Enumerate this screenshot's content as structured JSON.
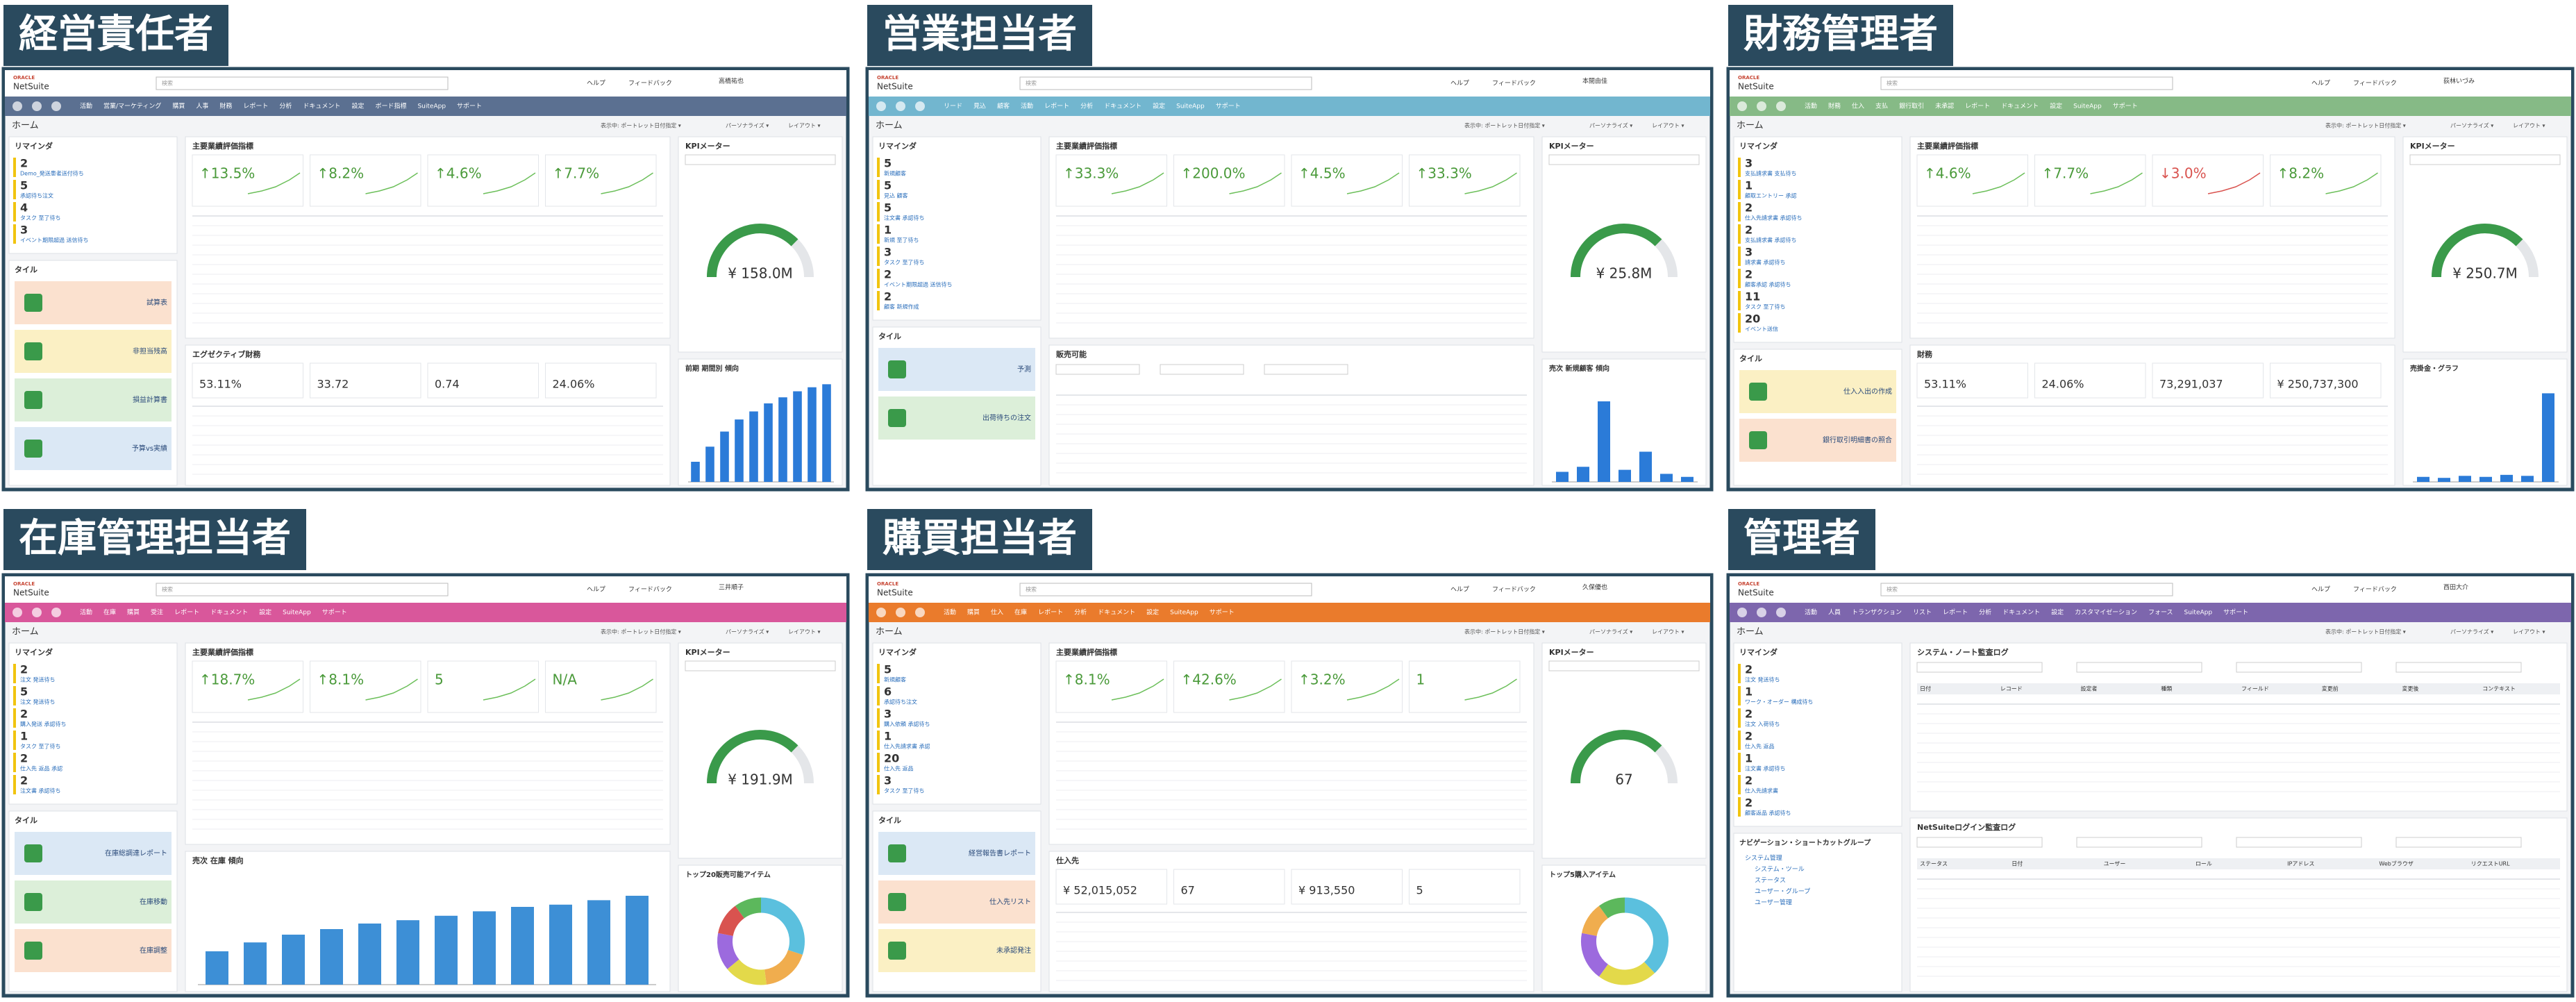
{
  "common": {
    "logo_top": "ORACLE",
    "logo": "NetSuite",
    "search": "検索",
    "help": "ヘルプ",
    "feedback": "フィードバック",
    "home": "ホーム",
    "view": "表示中: ポートレット日付指定 ▾",
    "personalize": "パーソナライズ ▾",
    "layout": "レイアウト ▾",
    "reminders": "リマインダ",
    "tiles": "タイル",
    "kpi": "主要業績評価指標",
    "kpi_meter": "KPIメーター"
  },
  "panels": [
    {
      "role": "経営責任者",
      "user": "高橋祐也",
      "nav_color": "#5b7091",
      "nav": [
        "活動",
        "営業/マーケティング",
        "購買",
        "人事",
        "財務",
        "レポート",
        "分析",
        "ドキュメント",
        "設定",
        "ボード指標",
        "SuiteApp",
        "サポート"
      ],
      "reminders": [
        {
          "count": 2,
          "label": "Demo_発送患者送付待ち"
        },
        {
          "count": 5,
          "label": "承認待ち注文"
        },
        {
          "count": 4,
          "label": "タスク 至了待ち"
        },
        {
          "count": 3,
          "label": "イベント期限超過 送信待ち"
        }
      ],
      "tiles": [
        {
          "label": "試算表",
          "color": "#fbe1cf"
        },
        {
          "label": "非担当残高",
          "color": "#fbf0c4"
        },
        {
          "label": "損益計算書",
          "color": "#dcefd9"
        },
        {
          "label": "予算vs実績",
          "color": "#dbe8f5"
        }
      ],
      "kpis": [
        "↑13.5%",
        "↑8.2%",
        "↑4.6%",
        "↑7.7%"
      ],
      "gauge": "¥ 158.0M",
      "section2": {
        "title": "エグゼクティブ財務",
        "kind": "values",
        "values": [
          "53.11%",
          "33.72",
          "0.74",
          "24.06%"
        ]
      },
      "widget2": {
        "title": "前期 期間別 傾向",
        "kind": "bars",
        "ylim": [
          0,
          100
        ],
        "values": [
          20,
          35,
          50,
          62,
          70,
          78,
          84,
          90,
          94,
          97
        ]
      }
    },
    {
      "role": "営業担当者",
      "user": "本間由佳",
      "nav_color": "#72b6cf",
      "nav": [
        "リード",
        "見込",
        "顧客",
        "活動",
        "レポート",
        "分析",
        "ドキュメント",
        "設定",
        "SuiteApp",
        "サポート"
      ],
      "reminders": [
        {
          "count": 5,
          "label": "新規顧客"
        },
        {
          "count": 5,
          "label": "見込 顧客"
        },
        {
          "count": 5,
          "label": "注文書 承認待ち"
        },
        {
          "count": 1,
          "label": "新規 至了待ち"
        },
        {
          "count": 3,
          "label": "タスク 至了待ち"
        },
        {
          "count": 2,
          "label": "イベント期限超過 送信待ち"
        },
        {
          "count": 2,
          "label": "顧客 新規作成"
        }
      ],
      "tiles": [
        {
          "label": "予測",
          "color": "#dbe8f5"
        },
        {
          "label": "出荷待ちの注文",
          "color": "#dcefd9"
        }
      ],
      "kpis": [
        "↑33.3%",
        "↑200.0%",
        "↑4.5%",
        "↑33.3%"
      ],
      "gauge": "¥ 25.8M",
      "section2": {
        "title": "販売可能",
        "kind": "table"
      },
      "widget2": {
        "title": "売次 新規顧客 傾向",
        "kind": "bars",
        "ylim": [
          0,
          100
        ],
        "values": [
          10,
          15,
          80,
          12,
          30,
          8,
          5
        ]
      }
    },
    {
      "role": "財務管理者",
      "user": "荻林いづみ",
      "nav_color": "#86ba86",
      "nav": [
        "活動",
        "財務",
        "仕入",
        "支払",
        "銀行取引",
        "未承認",
        "レポート",
        "ドキュメント",
        "設定",
        "SuiteApp",
        "サポート"
      ],
      "reminders": [
        {
          "count": 3,
          "label": "支払請求書 支払待ち"
        },
        {
          "count": 1,
          "label": "顧取エントリー 承認"
        },
        {
          "count": 2,
          "label": "仕入先請求書 承認待ち"
        },
        {
          "count": 2,
          "label": "支払請求書 承認待ち"
        },
        {
          "count": 3,
          "label": "請求書 承認待ち"
        },
        {
          "count": 2,
          "label": "顧客承認 承認待ち"
        },
        {
          "count": 11,
          "label": "タスク 至了待ち"
        },
        {
          "count": 20,
          "label": "イベント送信"
        }
      ],
      "tiles": [
        {
          "label": "仕入入出の作成",
          "color": "#fbf0c4"
        },
        {
          "label": "銀行取引明細書の照合",
          "color": "#fbe1cf"
        }
      ],
      "kpis": [
        "↑4.6%",
        "↑7.7%",
        "↓3.0%",
        "↑8.2%"
      ],
      "gauge": "¥ 250.7M",
      "section2": {
        "title": "財務",
        "kind": "values",
        "values": [
          "53.11%",
          "24.06%",
          "73,291,037",
          "¥ 250,737,300"
        ]
      },
      "widget2": {
        "title": "売掛金・グラフ",
        "kind": "bars",
        "ylim": [
          0,
          100
        ],
        "values": [
          5,
          4,
          6,
          5,
          7,
          6,
          88
        ]
      }
    },
    {
      "role": "在庫管理担当者",
      "user": "三井順子",
      "nav_color": "#d9579b",
      "nav": [
        "活動",
        "在庫",
        "購買",
        "受注",
        "レポート",
        "ドキュメント",
        "設定",
        "SuiteApp",
        "サポート"
      ],
      "reminders": [
        {
          "count": 2,
          "label": "注文 発送待ち"
        },
        {
          "count": 5,
          "label": "注文 発送待ち"
        },
        {
          "count": 2,
          "label": "購入発送 承認待ち"
        },
        {
          "count": 1,
          "label": "タスク 至了待ち"
        },
        {
          "count": 2,
          "label": "仕入先 返品 承認"
        },
        {
          "count": 2,
          "label": "注文書 承認待ち"
        }
      ],
      "tiles": [
        {
          "label": "在庫総調達レポート",
          "color": "#dbe8f5"
        },
        {
          "label": "在庫移動",
          "color": "#dcefd9"
        },
        {
          "label": "在庫調整",
          "color": "#fbe1cf"
        }
      ],
      "kpis": [
        "↑18.7%",
        "↑8.1%",
        "5",
        "N/A"
      ],
      "gauge": "¥ 191.9M",
      "section2": {
        "title": "売次 在庫 傾向",
        "kind": "bars",
        "ylim": [
          0,
          100
        ],
        "values": [
          30,
          38,
          45,
          50,
          55,
          58,
          62,
          66,
          70,
          72,
          76,
          80
        ]
      },
      "widget2": {
        "title": "トップ20販売可能アイテム",
        "kind": "donut",
        "colors": [
          "#5bc0de",
          "#f0ad4e",
          "#e3d94a",
          "#9c6ade",
          "#d9534f",
          "#5cb85c"
        ],
        "values": [
          30,
          18,
          16,
          14,
          12,
          10
        ]
      }
    },
    {
      "role": "購買担当者",
      "user": "久保優也",
      "nav_color": "#ea7b2c",
      "nav": [
        "活動",
        "購買",
        "仕入",
        "在庫",
        "レポート",
        "分析",
        "ドキュメント",
        "設定",
        "SuiteApp",
        "サポート"
      ],
      "reminders": [
        {
          "count": 5,
          "label": "新規顧客"
        },
        {
          "count": 6,
          "label": "承認待ち注文"
        },
        {
          "count": 3,
          "label": "購入依頼 承認待ち"
        },
        {
          "count": 1,
          "label": "仕入先請求書 承認"
        },
        {
          "count": 20,
          "label": "仕入先 返品"
        },
        {
          "count": 3,
          "label": "タスク 至了待ち"
        }
      ],
      "tiles": [
        {
          "label": "経営報告書レポート",
          "color": "#dbe8f5"
        },
        {
          "label": "仕入先リスト",
          "color": "#fbe1cf"
        },
        {
          "label": "未承認発注",
          "color": "#fbf0c4"
        }
      ],
      "kpis": [
        "↑8.1%",
        "↑42.6%",
        "↑3.2%",
        "1"
      ],
      "gauge": "67",
      "section2": {
        "title": "仕入先",
        "kind": "values",
        "values": [
          "¥ 52,015,052",
          "67",
          "¥ 913,550",
          "5"
        ]
      },
      "widget2": {
        "title": "トップ5購入アイテム",
        "kind": "donut",
        "colors": [
          "#5bc0de",
          "#e3d94a",
          "#9c6ade",
          "#f0ad4e",
          "#5cb85c"
        ],
        "values": [
          38,
          22,
          18,
          12,
          10
        ]
      }
    },
    {
      "role": "管理者",
      "user": "西田大介",
      "nav_color": "#7d66ad",
      "nav": [
        "活動",
        "人員",
        "トランザクション",
        "リスト",
        "レポート",
        "分析",
        "ドキュメント",
        "設定",
        "カスタマイゼーション",
        "フォース",
        "SuiteApp",
        "サポート"
      ],
      "reminders": [
        {
          "count": 2,
          "label": "注文 発送待ち"
        },
        {
          "count": 1,
          "label": "ワーク・オーダー 構成待ち"
        },
        {
          "count": 2,
          "label": "注文 入荷待ち"
        },
        {
          "count": 2,
          "label": "仕入先 返品"
        },
        {
          "count": 1,
          "label": "注文書 承認待ち"
        },
        {
          "count": 2,
          "label": "仕入先請求書"
        },
        {
          "count": 2,
          "label": "顧客返品 承認待ち"
        }
      ],
      "tiles_title": "ナビゲーション・ショートカットグループ",
      "links": [
        "システム管理",
        "システム・ツール",
        "ステータス",
        "ユーザー・グループ",
        "ユーザー管理"
      ],
      "wide": [
        {
          "title": "システム・ノート監査ログ",
          "columns": [
            "日付",
            "レコード",
            "設定者",
            "種類",
            "フィールド",
            "変更前",
            "変更後",
            "コンテキスト"
          ]
        },
        {
          "title": "NetSuiteログイン監査ログ",
          "columns": [
            "ステータス",
            "日付",
            "ユーザー",
            "ロール",
            "IPアドレス",
            "Webブラウザ",
            "リクエストURL"
          ]
        }
      ]
    }
  ]
}
